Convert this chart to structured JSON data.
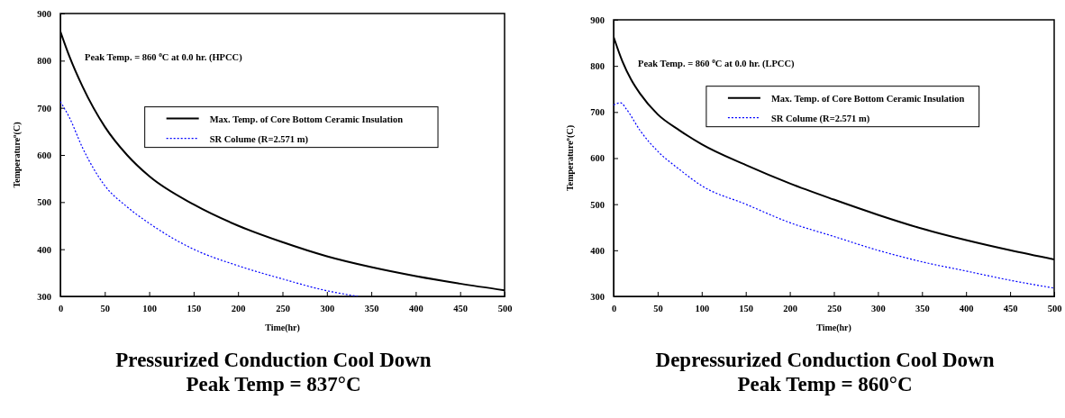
{
  "chart_data": [
    {
      "type": "line",
      "title": "Pressurized Conduction Cool Down",
      "subtitle": "Peak Temp = 837°C",
      "xlabel": "Time(hr)",
      "ylabel": "Temperature$^{o}$(C)",
      "annotations": [
        "Peak Temp. = 860 $^{o}$C at 0.0 hr. (HPCC)"
      ],
      "xlim": [
        0,
        500
      ],
      "xticks": [
        0,
        50,
        100,
        150,
        200,
        250,
        300,
        350,
        400,
        450,
        500
      ],
      "ylim": [
        300,
        900
      ],
      "yticks": [
        300,
        400,
        500,
        600,
        700,
        800,
        900
      ],
      "legend": "right",
      "grid": false,
      "series": [
        {
          "name": "Max. Temp. of Core Bottom Ceramic Insulation",
          "color": "#000000",
          "line_style": "solid",
          "x": [
            0,
            10,
            25,
            50,
            75,
            100,
            150,
            200,
            250,
            300,
            350,
            400,
            450,
            500
          ],
          "values": [
            862,
            810,
            745,
            660,
            600,
            555,
            495,
            450,
            415,
            385,
            362,
            343,
            327,
            313
          ]
        },
        {
          "name": "SR Colume (R=2.571 m)",
          "color": "#0000ff",
          "line_style": "dotted",
          "x": [
            0,
            10,
            25,
            50,
            75,
            100,
            150,
            200,
            250,
            300,
            335
          ],
          "values": [
            713,
            680,
            615,
            535,
            490,
            455,
            400,
            365,
            337,
            312,
            300
          ]
        }
      ]
    },
    {
      "type": "line",
      "title": "Depressurized Conduction Cool Down",
      "subtitle": "Peak Temp = 860°C",
      "xlabel": "Time(hr)",
      "ylabel": "Temperature$^{o}$(C)",
      "annotations": [
        "Peak Temp. = 860 $^{o}$C at 0.0 hr. (LPCC)"
      ],
      "xlim": [
        0,
        500
      ],
      "xticks": [
        0,
        50,
        100,
        150,
        200,
        250,
        300,
        350,
        400,
        450,
        500
      ],
      "ylim": [
        300,
        900
      ],
      "yticks": [
        300,
        400,
        500,
        600,
        700,
        800,
        900
      ],
      "legend": "top right",
      "grid": false,
      "series": [
        {
          "name": "Max. Temp. of Core Bottom Ceramic Insulation",
          "color": "#000000",
          "line_style": "solid",
          "x": [
            0,
            10,
            20,
            30,
            50,
            75,
            100,
            150,
            200,
            250,
            300,
            350,
            400,
            450,
            500
          ],
          "values": [
            863,
            810,
            770,
            740,
            695,
            660,
            630,
            585,
            545,
            510,
            477,
            447,
            422,
            400,
            380
          ]
        },
        {
          "name": "SR Colume (R=2.571 m)",
          "color": "#0000ff",
          "line_style": "dotted",
          "x": [
            0,
            8,
            15,
            30,
            50,
            75,
            100,
            150,
            200,
            250,
            300,
            350,
            400,
            450,
            500
          ],
          "values": [
            715,
            720,
            705,
            660,
            615,
            575,
            540,
            500,
            460,
            430,
            400,
            375,
            355,
            335,
            318
          ]
        }
      ]
    }
  ]
}
